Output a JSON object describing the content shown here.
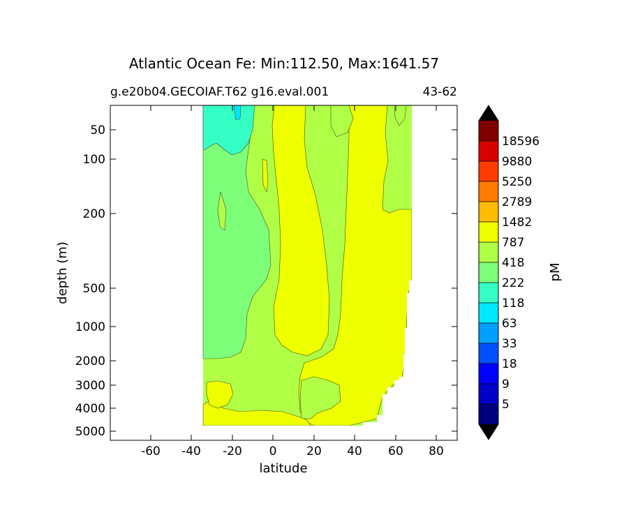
{
  "chart_data": {
    "type": "filled-contour",
    "title": "Atlantic Ocean Fe: Min:112.50, Max:1641.57",
    "subtitle_left": "g.e20b04.GECOIAF.T62 g16.eval.001",
    "subtitle_right": "43-62",
    "xlabel": "latitude",
    "ylabel": "depth (m)",
    "xlim": [
      -80,
      90
    ],
    "x_ticks": [
      -60,
      -40,
      -20,
      0,
      20,
      40,
      60,
      80
    ],
    "y_ticks": [
      50,
      100,
      200,
      500,
      1000,
      2000,
      3000,
      4000,
      5000
    ],
    "y_scale": "nonlinear depth (inverted)",
    "colorbar": {
      "label": "pM",
      "extend": "both",
      "levels": [
        "5",
        "9",
        "18",
        "33",
        "63",
        "118",
        "222",
        "418",
        "787",
        "1482",
        "2789",
        "5250",
        "9880",
        "18596"
      ],
      "colors": [
        "#00007f",
        "#0000c8",
        "#0000ff",
        "#0050ff",
        "#00a0ff",
        "#00e8ff",
        "#35ffc4",
        "#7dff7a",
        "#b0ff46",
        "#eeff00",
        "#ffbb00",
        "#ff7b00",
        "#ff3b00",
        "#d90000",
        "#7f0000"
      ],
      "extend_min_color": "#000000",
      "extend_max_color": "#000000"
    },
    "regions": [
      {
        "band": "118-222",
        "color": "#35ffc4",
        "description": "southern upper ocean"
      },
      {
        "band": "222-418",
        "color": "#7dff7a",
        "description": "southern intermediate tongue"
      },
      {
        "band": "418-787",
        "color": "#b0ff46",
        "description": "mid-depth and northern upper ocean"
      },
      {
        "band": "787-1482",
        "color": "#eeff00",
        "description": "equatorial column and deep north"
      },
      {
        "band": "63-118",
        "color": "#00e8ff",
        "description": "small surface patch near -20"
      }
    ]
  }
}
